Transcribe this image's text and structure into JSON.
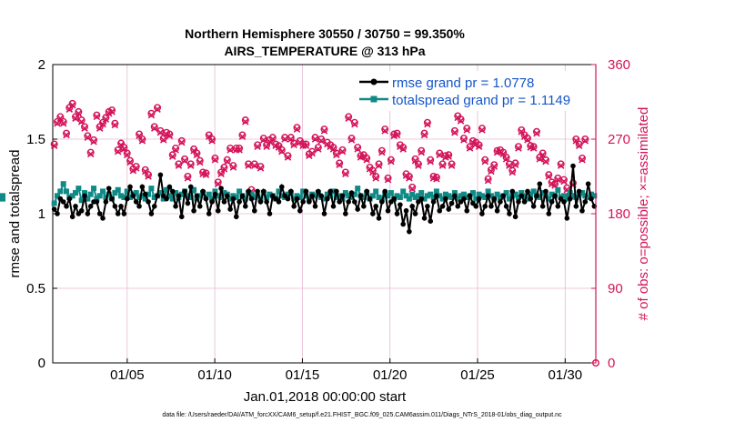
{
  "chart_data": {
    "type": "line",
    "title": [
      "Northern Hemisphere 30550 / 30750 = 99.350%",
      "AIRS_TEMPERATURE @ 313 hPa"
    ],
    "xlabel": "Jan.01,2018 00:00:00 start",
    "ylabel": "rmse and totalspread",
    "y2label": "# of obs: o=possible; ×=assimilated",
    "x_ticks": [
      "01/05",
      "01/10",
      "01/15",
      "01/20",
      "01/25",
      "01/30"
    ],
    "y_ticks": [
      "0",
      "0.5",
      "1",
      "1.5",
      "2"
    ],
    "y2_ticks": [
      "0",
      "90",
      "180",
      "270",
      "360"
    ],
    "xlim": [
      0.75,
      31.75
    ],
    "x_tick_days": [
      5,
      10,
      15,
      20,
      25,
      30
    ],
    "ylim": [
      0,
      2
    ],
    "y2lim": [
      0,
      360
    ],
    "grid": true,
    "legend_position": "top-right",
    "footnote": "data file: /Users/raeder/DAI/ATM_forcXX/CAM6_setup/f.e21.FHIST_BGC.f09_025.CAM6assim.011/Diags_NTrS_2018-01/obs_diag_output.nc",
    "colors": {
      "rmse": "#000000",
      "spread": "#0f8a87",
      "obs": "#d4145a",
      "legend_text": "#1556c9",
      "grid": "#e6b8d2"
    },
    "series": [
      {
        "name": "rmse grand pr = 1.0778",
        "color": "#000000",
        "values": [
          1.03,
          1.0,
          1.1,
          1.08,
          1.05,
          1.1,
          0.98,
          1.05,
          1.0,
          1.02,
          1.12,
          1.0,
          1.05,
          1.08,
          1.08,
          1.0,
          0.97,
          1.08,
          1.17,
          1.1,
          1.05,
          1.0,
          1.05,
          1.0,
          1.1,
          1.18,
          1.12,
          1.08,
          1.05,
          1.18,
          1.13,
          1.08,
          1.0,
          1.05,
          1.12,
          1.26,
          1.12,
          1.1,
          1.18,
          1.15,
          1.05,
          1.12,
          0.98,
          1.15,
          1.07,
          1.18,
          1.02,
          1.12,
          1.05,
          1.15,
          1.1,
          1.0,
          1.08,
          1.13,
          1.02,
          1.17,
          1.08,
          1.12,
          1.03,
          1.1,
          0.98,
          1.08,
          1.12,
          1.05,
          1.15,
          1.1,
          1.02,
          1.15,
          1.08,
          1.15,
          1.08,
          1.0,
          1.12,
          1.1,
          1.08,
          1.18,
          1.12,
          1.1,
          1.15,
          1.05,
          1.1,
          1.02,
          1.08,
          1.15,
          1.08,
          1.12,
          1.05,
          1.15,
          1.12,
          1.0,
          1.1,
          1.15,
          1.05,
          1.15,
          1.08,
          1.12,
          1.0,
          1.08,
          1.14,
          1.08,
          1.03,
          1.12,
          1.05,
          1.15,
          1.1,
          1.0,
          1.05,
          0.97,
          1.08,
          1.15,
          1.02,
          1.08,
          1.1,
          1.0,
          1.06,
          0.93,
          1.02,
          0.88,
          1.05,
          1.0,
          1.08,
          1.1,
          0.97,
          1.05,
          0.95,
          1.08,
          1.12,
          1.02,
          1.05,
          1.1,
          1.03,
          1.07,
          1.12,
          1.05,
          1.08,
          1.1,
          1.02,
          1.12,
          1.07,
          1.05,
          1.1,
          1.0,
          1.05,
          1.12,
          1.05,
          1.1,
          1.02,
          1.08,
          1.12,
          1.05,
          1.0,
          1.15,
          0.98,
          1.08,
          1.12,
          1.08,
          1.15,
          1.1,
          1.05,
          1.12,
          1.2,
          1.05,
          1.15,
          1.0,
          1.08,
          1.12,
          1.05,
          1.1,
          1.08,
          0.97,
          1.1,
          1.32,
          1.05,
          1.15,
          1.02,
          1.08,
          1.2,
          1.1,
          1.05
        ]
      },
      {
        "name": "totalspread grand pr = 1.1149",
        "color": "#0f8a87",
        "values": [
          1.07,
          1.12,
          1.15,
          1.2,
          1.15,
          1.11,
          1.12,
          1.14,
          1.17,
          1.09,
          1.14,
          1.1,
          1.13,
          1.17,
          1.1,
          1.12,
          1.15,
          1.11,
          1.13,
          1.1,
          1.14,
          1.16,
          1.12,
          1.11,
          1.15,
          1.11,
          1.13,
          1.14,
          1.11,
          1.12,
          1.1,
          1.13,
          1.17,
          1.11,
          1.12,
          1.14,
          1.1,
          1.16,
          1.12,
          1.1,
          1.14,
          1.11,
          1.13,
          1.15,
          1.12,
          1.11,
          1.16,
          1.1,
          1.12,
          1.14,
          1.11,
          1.13,
          1.1,
          1.15,
          1.12,
          1.11,
          1.14,
          1.13,
          1.1,
          1.12,
          1.11,
          1.15,
          1.12,
          1.1,
          1.14,
          1.13,
          1.11,
          1.12,
          1.1,
          1.14,
          1.11,
          1.13,
          1.12,
          1.1,
          1.15,
          1.12,
          1.11,
          1.13,
          1.14,
          1.1,
          1.12,
          1.11,
          1.15,
          1.12,
          1.1,
          1.13,
          1.12,
          1.14,
          1.11,
          1.1,
          1.13,
          1.12,
          1.15,
          1.11,
          1.12,
          1.1,
          1.14,
          1.12,
          1.11,
          1.13,
          1.17,
          1.12,
          1.11,
          1.14,
          1.1,
          1.12,
          1.15,
          1.11,
          1.1,
          1.13,
          1.12,
          1.14,
          1.1,
          1.12,
          1.11,
          1.15,
          1.12,
          1.1,
          1.13,
          1.11,
          1.12,
          1.14,
          1.1,
          1.12,
          1.13,
          1.11,
          1.15,
          1.12,
          1.1,
          1.13,
          1.12,
          1.11,
          1.14,
          1.1,
          1.12,
          1.13,
          1.11,
          1.12,
          1.14,
          1.1,
          1.13,
          1.12,
          1.11,
          1.15,
          1.12,
          1.1,
          1.13,
          1.11,
          1.12,
          1.14,
          1.1,
          1.12,
          1.13,
          1.11,
          1.14,
          1.12,
          1.1,
          1.13,
          1.15,
          1.12,
          1.11,
          1.14,
          1.12,
          1.1,
          1.13,
          1.12,
          1.16,
          1.11,
          1.12,
          1.1,
          1.14,
          1.12,
          1.11,
          1.13,
          1.14,
          1.12,
          1.11,
          1.13,
          1.12,
          1.1,
          1.12
        ]
      }
    ],
    "obs_possible": [
      264,
      291,
      297,
      291,
      277,
      308,
      313,
      297,
      303,
      293,
      285,
      274,
      254,
      269,
      299,
      285,
      290,
      296,
      303,
      305,
      289,
      257,
      265,
      260,
      253,
      244,
      234,
      237,
      276,
      270,
      233,
      227,
      301,
      285,
      308,
      280,
      271,
      278,
      276,
      251,
      259,
      240,
      268,
      246,
      225,
      240,
      258,
      253,
      244,
      230,
      229,
      275,
      270,
      247,
      218,
      230,
      236,
      245,
      259,
      238,
      259,
      259,
      275,
      293,
      240,
      209,
      240,
      263,
      237,
      271,
      263,
      269,
      272,
      264,
      262,
      257,
      272,
      250,
      272,
      265,
      284,
      268,
      264,
      264,
      252,
      255,
      272,
      260,
      270,
      282,
      266,
      263,
      260,
      253,
      241,
      257,
      230,
      297,
      271,
      290,
      260,
      250,
      251,
      247,
      236,
      232,
      225,
      240,
      256,
      282,
      223,
      245,
      276,
      277,
      263,
      260,
      228,
      225,
      212,
      246,
      240,
      256,
      277,
      290,
      245,
      225,
      224,
      253,
      240,
      250,
      251,
      240,
      280,
      298,
      294,
      271,
      283,
      261,
      268,
      266,
      263,
      283,
      245,
      222,
      233,
      239,
      256,
      257,
      254,
      248,
      240,
      232,
      241,
      261,
      281,
      275,
      271,
      262,
      261,
      279,
      248,
      253,
      245,
      227,
      218,
      216,
      223,
      240,
      221,
      211,
      203,
      217,
      270,
      264,
      247,
      270
    ],
    "obs_assimilated": [
      262,
      289,
      295,
      289,
      275,
      306,
      311,
      295,
      301,
      291,
      283,
      272,
      252,
      267,
      297,
      283,
      288,
      294,
      301,
      303,
      287,
      255,
      263,
      258,
      251,
      242,
      232,
      235,
      274,
      268,
      231,
      225,
      299,
      283,
      306,
      278,
      269,
      276,
      274,
      249,
      257,
      238,
      266,
      244,
      223,
      238,
      256,
      251,
      242,
      228,
      227,
      273,
      268,
      245,
      216,
      228,
      234,
      243,
      257,
      236,
      257,
      257,
      273,
      291,
      238,
      207,
      238,
      261,
      235,
      269,
      261,
      267,
      270,
      262,
      260,
      255,
      270,
      248,
      270,
      263,
      282,
      266,
      262,
      262,
      250,
      253,
      270,
      258,
      268,
      280,
      264,
      261,
      258,
      251,
      239,
      255,
      228,
      295,
      269,
      288,
      258,
      248,
      249,
      245,
      234,
      230,
      223,
      238,
      254,
      280,
      221,
      243,
      274,
      275,
      261,
      258,
      226,
      223,
      210,
      244,
      238,
      254,
      275,
      288,
      243,
      223,
      222,
      251,
      238,
      248,
      249,
      238,
      278,
      296,
      292,
      269,
      281,
      259,
      266,
      264,
      261,
      281,
      243,
      220,
      231,
      237,
      254,
      255,
      252,
      246,
      238,
      230,
      239,
      259,
      279,
      273,
      269,
      260,
      259,
      277,
      246,
      251,
      243,
      225,
      216,
      214,
      221,
      238,
      219,
      209,
      201,
      215,
      268,
      262,
      245,
      268
    ]
  }
}
